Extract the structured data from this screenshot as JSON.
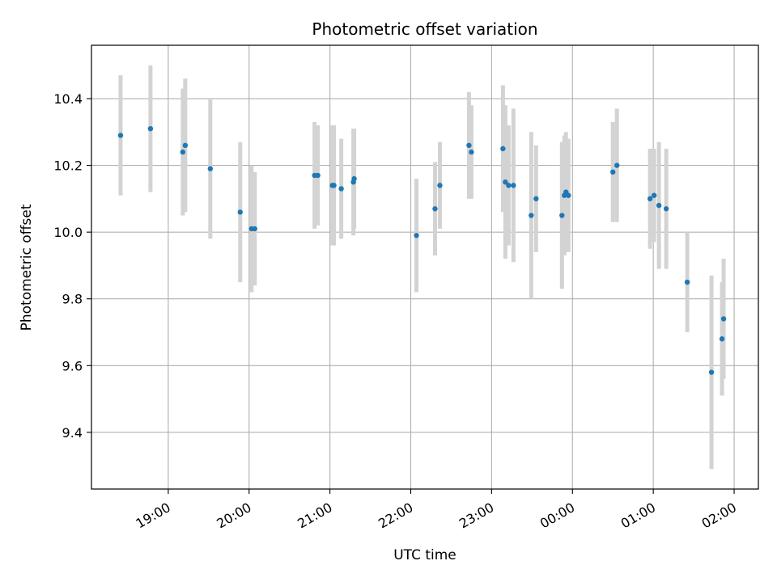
{
  "chart_data": {
    "type": "scatter",
    "title": "Photometric offset variation",
    "xlabel": "UTC time",
    "ylabel": "Photometric offset",
    "grid": true,
    "x_unit": "hours since 00:00 UTC (hours after midnight are > 24)",
    "xlim": [
      18.05,
      26.3
    ],
    "ylim": [
      9.23,
      10.56
    ],
    "x_ticks": [
      {
        "value": 19,
        "label": "19:00"
      },
      {
        "value": 20,
        "label": "20:00"
      },
      {
        "value": 21,
        "label": "21:00"
      },
      {
        "value": 22,
        "label": "22:00"
      },
      {
        "value": 23,
        "label": "23:00"
      },
      {
        "value": 24,
        "label": "00:00"
      },
      {
        "value": 25,
        "label": "01:00"
      },
      {
        "value": 26,
        "label": "02:00"
      }
    ],
    "y_ticks": [
      {
        "value": 9.4,
        "label": "9.4"
      },
      {
        "value": 9.6,
        "label": "9.6"
      },
      {
        "value": 9.8,
        "label": "9.8"
      },
      {
        "value": 10.0,
        "label": "10.0"
      },
      {
        "value": 10.2,
        "label": "10.2"
      },
      {
        "value": 10.4,
        "label": "10.4"
      }
    ],
    "colors": {
      "marker": "#1f77b4",
      "errorbar": "#d3d3d3",
      "grid": "#b0b0b0",
      "axes": "#000000"
    },
    "points": [
      {
        "x": 18.41,
        "y": 10.29,
        "err": 0.18
      },
      {
        "x": 18.78,
        "y": 10.31,
        "err": 0.19
      },
      {
        "x": 19.18,
        "y": 10.24,
        "err": 0.19
      },
      {
        "x": 19.21,
        "y": 10.26,
        "err": 0.2
      },
      {
        "x": 19.52,
        "y": 10.19,
        "err": 0.21
      },
      {
        "x": 19.89,
        "y": 10.06,
        "err": 0.21
      },
      {
        "x": 20.03,
        "y": 10.01,
        "err": 0.19
      },
      {
        "x": 20.07,
        "y": 10.01,
        "err": 0.17
      },
      {
        "x": 20.81,
        "y": 10.17,
        "err": 0.16
      },
      {
        "x": 20.85,
        "y": 10.17,
        "err": 0.15
      },
      {
        "x": 21.03,
        "y": 10.14,
        "err": 0.18
      },
      {
        "x": 21.05,
        "y": 10.14,
        "err": 0.18
      },
      {
        "x": 21.14,
        "y": 10.13,
        "err": 0.15
      },
      {
        "x": 21.29,
        "y": 10.15,
        "err": 0.16
      },
      {
        "x": 21.3,
        "y": 10.16,
        "err": 0.15
      },
      {
        "x": 22.07,
        "y": 9.99,
        "err": 0.17
      },
      {
        "x": 22.3,
        "y": 10.07,
        "err": 0.14
      },
      {
        "x": 22.36,
        "y": 10.14,
        "err": 0.13
      },
      {
        "x": 22.72,
        "y": 10.26,
        "err": 0.16
      },
      {
        "x": 22.75,
        "y": 10.24,
        "err": 0.14
      },
      {
        "x": 23.14,
        "y": 10.25,
        "err": 0.19
      },
      {
        "x": 23.17,
        "y": 10.15,
        "err": 0.23
      },
      {
        "x": 23.21,
        "y": 10.14,
        "err": 0.18
      },
      {
        "x": 23.27,
        "y": 10.14,
        "err": 0.23
      },
      {
        "x": 23.49,
        "y": 10.05,
        "err": 0.25
      },
      {
        "x": 23.55,
        "y": 10.1,
        "err": 0.16
      },
      {
        "x": 23.87,
        "y": 10.05,
        "err": 0.22
      },
      {
        "x": 23.9,
        "y": 10.11,
        "err": 0.18
      },
      {
        "x": 23.92,
        "y": 10.12,
        "err": 0.18
      },
      {
        "x": 23.95,
        "y": 10.11,
        "err": 0.17
      },
      {
        "x": 24.5,
        "y": 10.18,
        "err": 0.15
      },
      {
        "x": 24.55,
        "y": 10.2,
        "err": 0.17
      },
      {
        "x": 24.96,
        "y": 10.1,
        "err": 0.15
      },
      {
        "x": 25.01,
        "y": 10.11,
        "err": 0.14
      },
      {
        "x": 25.07,
        "y": 10.08,
        "err": 0.19
      },
      {
        "x": 25.16,
        "y": 10.07,
        "err": 0.18
      },
      {
        "x": 25.42,
        "y": 9.85,
        "err": 0.15
      },
      {
        "x": 25.72,
        "y": 9.58,
        "err": 0.29
      },
      {
        "x": 25.85,
        "y": 9.68,
        "err": 0.17
      },
      {
        "x": 25.87,
        "y": 9.74,
        "err": 0.18
      }
    ]
  }
}
